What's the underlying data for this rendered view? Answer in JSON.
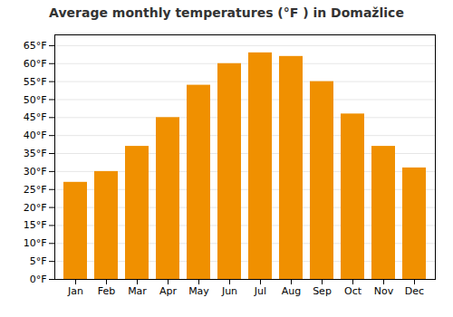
{
  "chart_data": {
    "type": "bar",
    "title": "Average monthly temperatures (°F ) in Domažlice",
    "categories": [
      "Jan",
      "Feb",
      "Mar",
      "Apr",
      "May",
      "Jun",
      "Jul",
      "Aug",
      "Sep",
      "Oct",
      "Nov",
      "Dec"
    ],
    "values": [
      27,
      30,
      37,
      45,
      54,
      60,
      63,
      62,
      55,
      46,
      37,
      31
    ],
    "color": "#F09000",
    "ylim": [
      0,
      68
    ],
    "yticks": [
      {
        "value": 0,
        "label": "0°F"
      },
      {
        "value": 5,
        "label": "5°F"
      },
      {
        "value": 10,
        "label": "10°F"
      },
      {
        "value": 15,
        "label": "15°F"
      },
      {
        "value": 20,
        "label": "20°F"
      },
      {
        "value": 25,
        "label": "25°F"
      },
      {
        "value": 30,
        "label": "30°F"
      },
      {
        "value": 35,
        "label": "35°F"
      },
      {
        "value": 40,
        "label": "40°F"
      },
      {
        "value": 45,
        "label": "45°F"
      },
      {
        "value": 50,
        "label": "50°F"
      },
      {
        "value": 55,
        "label": "55°F"
      },
      {
        "value": 60,
        "label": "60°F"
      },
      {
        "value": 65,
        "label": "65°F"
      }
    ],
    "grid": true
  }
}
